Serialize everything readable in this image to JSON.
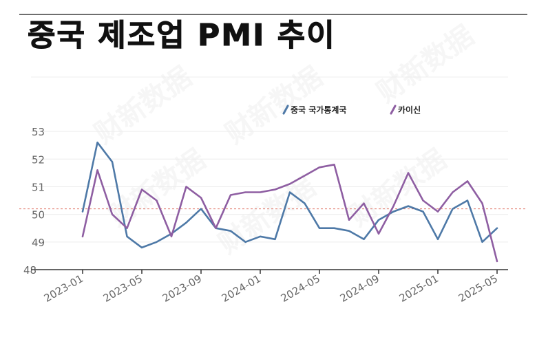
{
  "title": "중국 제조업 PMI 추이",
  "watermark": "财新数据",
  "chart_data": {
    "type": "line",
    "x": [
      "2023-01",
      "2023-02",
      "2023-03",
      "2023-04",
      "2023-05",
      "2023-06",
      "2023-07",
      "2023-08",
      "2023-09",
      "2023-10",
      "2023-11",
      "2023-12",
      "2024-01",
      "2024-02",
      "2024-03",
      "2024-04",
      "2024-05",
      "2024-06",
      "2024-07",
      "2024-08",
      "2024-09",
      "2024-10",
      "2024-11",
      "2024-12",
      "2025-01",
      "2025-02",
      "2025-03",
      "2025-04",
      "2025-05"
    ],
    "xticks": [
      "2023-01",
      "2023-05",
      "2023-09",
      "2024-01",
      "2024-05",
      "2024-09",
      "2025-01",
      "2025-05"
    ],
    "yticks": [
      48,
      49,
      50,
      51,
      52,
      53
    ],
    "ylim": [
      48,
      53.4
    ],
    "reference_line": 50.2,
    "legend_position": "top-right",
    "series": [
      {
        "name": "중국 국가통계국",
        "color": "#4e79a7",
        "values": [
          50.1,
          52.6,
          51.9,
          49.2,
          48.8,
          49.0,
          49.3,
          49.7,
          50.2,
          49.5,
          49.4,
          49.0,
          49.2,
          49.1,
          50.8,
          50.4,
          49.5,
          49.5,
          49.4,
          49.1,
          49.8,
          50.1,
          50.3,
          50.1,
          49.1,
          50.2,
          50.5,
          49.0,
          49.5
        ]
      },
      {
        "name": "카이신",
        "color": "#8e5ea2",
        "values": [
          49.2,
          51.6,
          50.0,
          49.5,
          50.9,
          50.5,
          49.2,
          51.0,
          50.6,
          49.5,
          50.7,
          50.8,
          50.8,
          50.9,
          51.1,
          51.4,
          51.7,
          51.8,
          49.8,
          50.4,
          49.3,
          50.3,
          51.5,
          50.5,
          50.1,
          50.8,
          51.2,
          50.4,
          48.3
        ]
      }
    ]
  }
}
